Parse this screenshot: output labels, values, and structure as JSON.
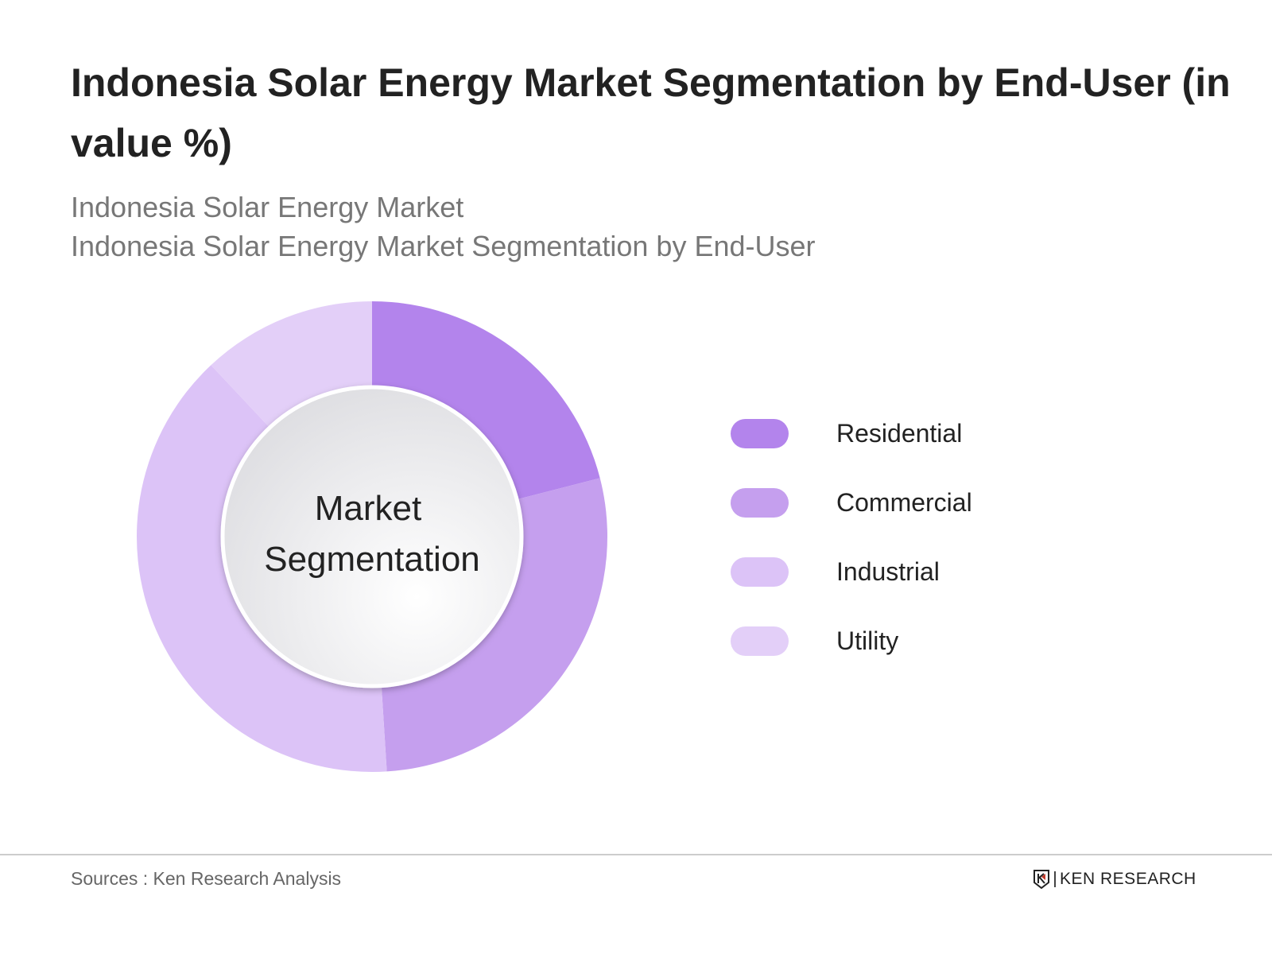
{
  "title": "Indonesia Solar Energy Market Segmentation by End-User (in value %)",
  "subtitle_lines": [
    "Indonesia Solar Energy Market",
    "Indonesia Solar Energy Market Segmentation by End-User"
  ],
  "footer": {
    "sources": "Sources : Ken Research Analysis",
    "logo_text": "KEN RESEARCH"
  },
  "chart_data": {
    "type": "pie",
    "variant": "donut",
    "center_label": [
      "Market",
      "Segmentation"
    ],
    "categories": [
      "Residential",
      "Commercial",
      "Industrial",
      "Utility"
    ],
    "values": [
      21,
      28,
      39,
      12
    ],
    "colors": [
      "#B384EC",
      "#C59FEE",
      "#DCC3F7",
      "#E3CFF8"
    ],
    "legend_position": "right"
  }
}
